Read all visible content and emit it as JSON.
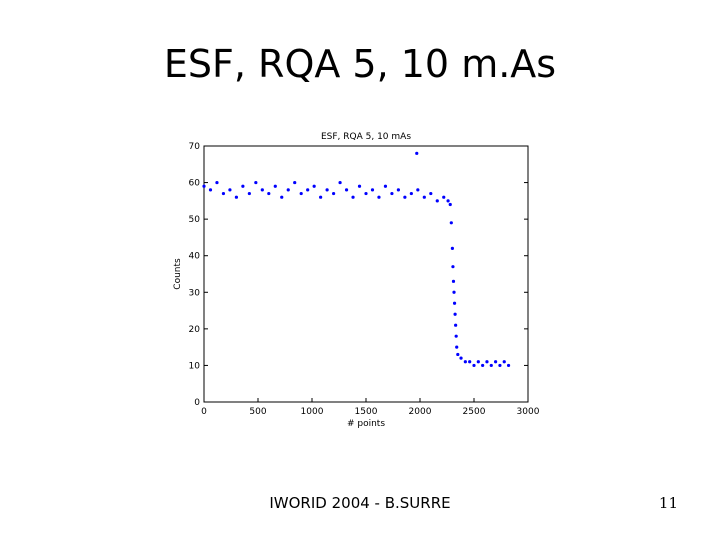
{
  "slide": {
    "title": "ESF, RQA 5, 10 m.As",
    "footer": "IWORID 2004 - B.SURRE",
    "page_number": "11"
  },
  "chart_data": {
    "type": "scatter",
    "title": "ESF, RQA 5, 10 mAs",
    "xlabel": "# points",
    "ylabel": "Counts",
    "xlim": [
      0,
      3000
    ],
    "ylim": [
      0,
      70
    ],
    "xticks": [
      0,
      500,
      1000,
      1500,
      2000,
      2500,
      3000
    ],
    "yticks": [
      0,
      10,
      20,
      30,
      40,
      50,
      60,
      70
    ],
    "xtick_labels": [
      "0",
      "500",
      "1000",
      "1500",
      "2000",
      "2500",
      "3000"
    ],
    "ytick_labels": [
      "0",
      "10",
      "20",
      "30",
      "40",
      "50",
      "60",
      "70"
    ],
    "grid": false,
    "marker_color": "#0000ff",
    "series": [
      {
        "points": [
          [
            0,
            59
          ],
          [
            60,
            58
          ],
          [
            120,
            60
          ],
          [
            180,
            57
          ],
          [
            240,
            58
          ],
          [
            300,
            56
          ],
          [
            360,
            59
          ],
          [
            420,
            57
          ],
          [
            480,
            60
          ],
          [
            540,
            58
          ],
          [
            600,
            57
          ],
          [
            660,
            59
          ],
          [
            720,
            56
          ],
          [
            780,
            58
          ],
          [
            840,
            60
          ],
          [
            900,
            57
          ],
          [
            960,
            58
          ],
          [
            1020,
            59
          ],
          [
            1080,
            56
          ],
          [
            1140,
            58
          ],
          [
            1200,
            57
          ],
          [
            1260,
            60
          ],
          [
            1320,
            58
          ],
          [
            1380,
            56
          ],
          [
            1440,
            59
          ],
          [
            1500,
            57
          ],
          [
            1560,
            58
          ],
          [
            1620,
            56
          ],
          [
            1680,
            59
          ],
          [
            1740,
            57
          ],
          [
            1800,
            58
          ],
          [
            1860,
            56
          ],
          [
            1920,
            57
          ],
          [
            1980,
            58
          ],
          [
            2040,
            56
          ],
          [
            2100,
            57
          ],
          [
            2160,
            55
          ],
          [
            2220,
            56
          ],
          [
            2260,
            55
          ],
          [
            2280,
            54
          ],
          [
            2290,
            49
          ],
          [
            2300,
            42
          ],
          [
            2305,
            37
          ],
          [
            2310,
            33
          ],
          [
            2315,
            30
          ],
          [
            2320,
            27
          ],
          [
            2325,
            24
          ],
          [
            2330,
            21
          ],
          [
            2335,
            18
          ],
          [
            2340,
            15
          ],
          [
            2350,
            13
          ],
          [
            2380,
            12
          ],
          [
            2420,
            11
          ],
          [
            2460,
            11
          ],
          [
            2500,
            10
          ],
          [
            2540,
            11
          ],
          [
            2580,
            10
          ],
          [
            2620,
            11
          ],
          [
            2660,
            10
          ],
          [
            2700,
            11
          ],
          [
            2740,
            10
          ],
          [
            2780,
            11
          ],
          [
            2820,
            10
          ],
          [
            1970,
            68
          ]
        ]
      }
    ]
  }
}
